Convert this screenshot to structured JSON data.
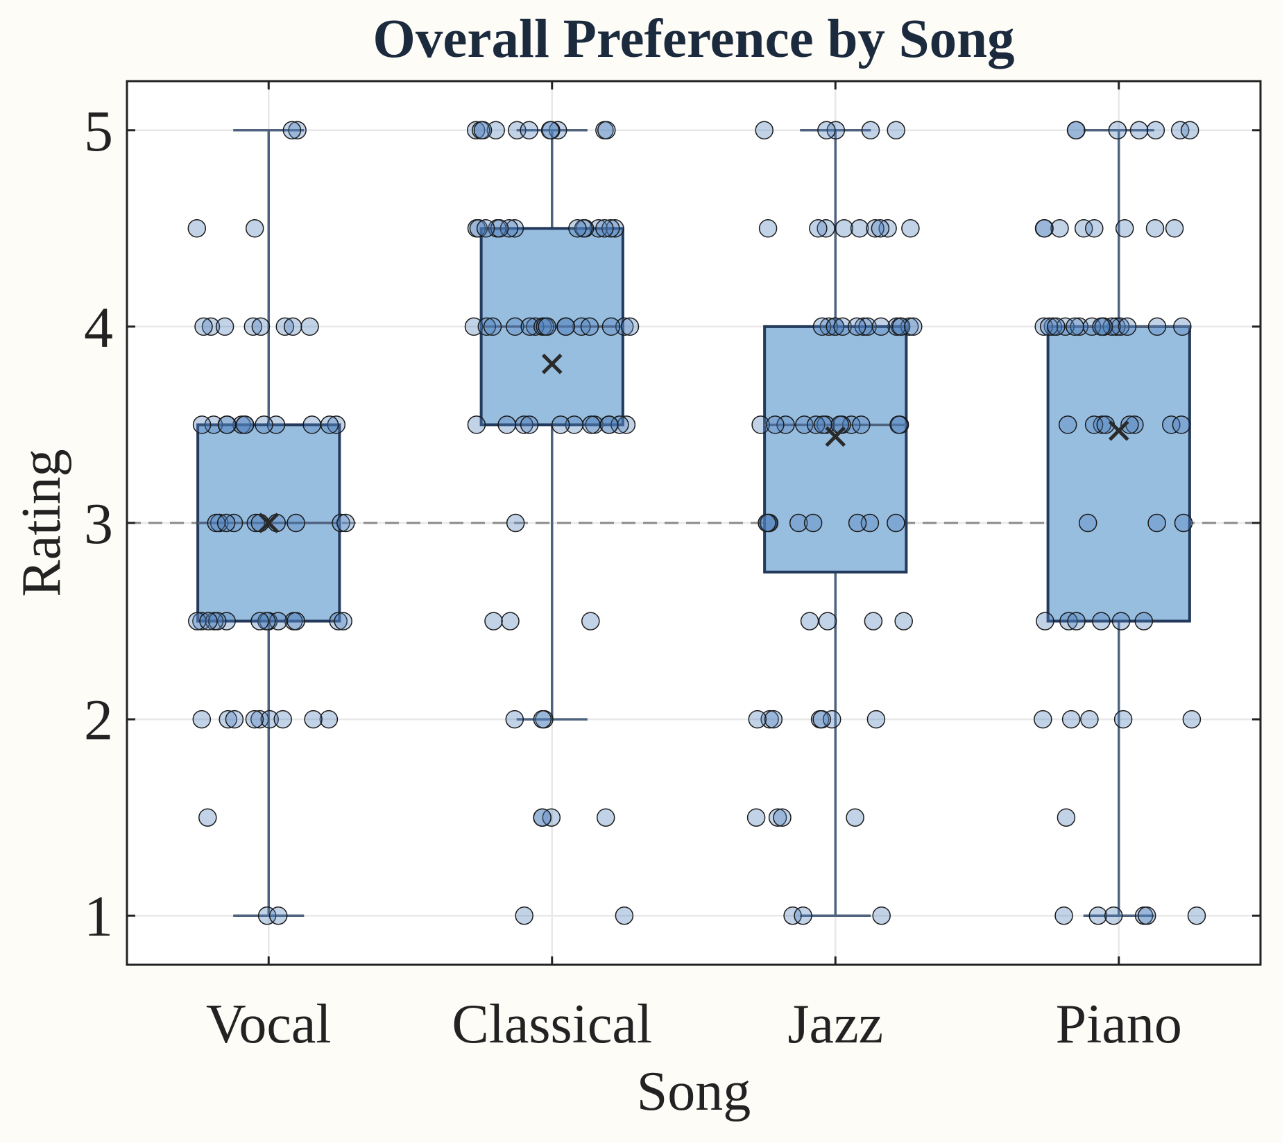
{
  "chart_data": {
    "type": "box",
    "title": "Overall Preference by Song",
    "xlabel": "Song",
    "ylabel": "Rating",
    "categories": [
      "Vocal",
      "Classical",
      "Jazz",
      "Piano"
    ],
    "y_ticks": [
      "1",
      "2",
      "3",
      "4",
      "5"
    ],
    "ylim": [
      0.75,
      5.25
    ],
    "grid": true,
    "reference_line": {
      "y": 3,
      "style": "dashed"
    },
    "box_stats": [
      {
        "category": "Vocal",
        "whisker_low": 1.0,
        "q1": 2.5,
        "median": 3.0,
        "q3": 3.5,
        "whisker_high": 5.0,
        "mean": 3.0
      },
      {
        "category": "Classical",
        "whisker_low": 2.0,
        "q1": 3.5,
        "median": 4.0,
        "q3": 4.5,
        "whisker_high": 5.0,
        "mean": 3.81
      },
      {
        "category": "Jazz",
        "whisker_low": 1.0,
        "q1": 2.75,
        "median": 3.5,
        "q3": 4.0,
        "whisker_high": 5.0,
        "mean": 3.44
      },
      {
        "category": "Piano",
        "whisker_low": 1.0,
        "q1": 2.5,
        "median": 4.0,
        "q3": 4.0,
        "whisker_high": 5.0,
        "mean": 3.47
      }
    ],
    "points": [
      {
        "category": "Vocal",
        "ratings": [
          1,
          1,
          1.5,
          2,
          2,
          2,
          2,
          2,
          2,
          2,
          2,
          2,
          2.5,
          2.5,
          2.5,
          2.5,
          2.5,
          2.5,
          2.5,
          2.5,
          2.5,
          2.5,
          2.5,
          2.5,
          2.5,
          2.5,
          3,
          3,
          3,
          3,
          3,
          3,
          3,
          3,
          3,
          3,
          3.5,
          3.5,
          3.5,
          3.5,
          3.5,
          3.5,
          3.5,
          3.5,
          3.5,
          3.5,
          3.5,
          3.5,
          4,
          4,
          4,
          4,
          4,
          4,
          4,
          4,
          4.5,
          4.5,
          5,
          5
        ]
      },
      {
        "category": "Classical",
        "ratings": [
          1,
          1,
          1.5,
          1.5,
          1.5,
          1.5,
          2,
          2,
          2,
          2.5,
          2.5,
          2.5,
          3,
          3.5,
          3.5,
          3.5,
          3.5,
          3.5,
          3.5,
          3.5,
          3.5,
          3.5,
          3.5,
          3.5,
          3.5,
          4,
          4,
          4,
          4,
          4,
          4,
          4,
          4,
          4,
          4,
          4,
          4,
          4,
          4,
          4,
          4,
          4.5,
          4.5,
          4.5,
          4.5,
          4.5,
          4.5,
          4.5,
          4.5,
          4.5,
          4.5,
          4.5,
          4.5,
          4.5,
          4.5,
          5,
          5,
          5,
          5,
          5,
          5,
          5,
          5,
          5,
          5,
          5
        ]
      },
      {
        "category": "Jazz",
        "ratings": [
          1,
          1,
          1,
          1.5,
          1.5,
          1.5,
          1.5,
          2,
          2,
          2,
          2,
          2,
          2,
          2,
          2.5,
          2.5,
          2.5,
          2.5,
          3,
          3,
          3,
          3,
          3,
          3,
          3,
          3,
          3.5,
          3.5,
          3.5,
          3.5,
          3.5,
          3.5,
          3.5,
          3.5,
          3.5,
          3.5,
          3.5,
          3.5,
          3.5,
          4,
          4,
          4,
          4,
          4,
          4,
          4,
          4,
          4,
          4,
          4,
          4,
          4,
          4,
          4.5,
          4.5,
          4.5,
          4.5,
          4.5,
          4.5,
          4.5,
          4.5,
          4.5,
          5,
          5,
          5,
          5,
          5
        ]
      },
      {
        "category": "Piano",
        "ratings": [
          1,
          1,
          1,
          1,
          1,
          1,
          1.5,
          2,
          2,
          2,
          2,
          2,
          2.5,
          2.5,
          2.5,
          2.5,
          2.5,
          2.5,
          3,
          3,
          3,
          3.5,
          3.5,
          3.5,
          3.5,
          3.5,
          3.5,
          3.5,
          3.5,
          4,
          4,
          4,
          4,
          4,
          4,
          4,
          4,
          4,
          4,
          4,
          4,
          4,
          4,
          4,
          4,
          4,
          4.5,
          4.5,
          4.5,
          4.5,
          4.5,
          4.5,
          4.5,
          4.5,
          5,
          5,
          5,
          5,
          5,
          5,
          5
        ]
      }
    ]
  },
  "colors": {
    "box_fill": "#97bddf",
    "box_edge": "#243a5c",
    "whisker": "#4f637f",
    "point_fill": "#4f81bd",
    "point_edge": "#1a1a1a",
    "reference_line": "#8a8a8a",
    "grid": "#e8e8e8",
    "mean_marker": "#2a2a2a",
    "background": "#fdfcf7"
  }
}
